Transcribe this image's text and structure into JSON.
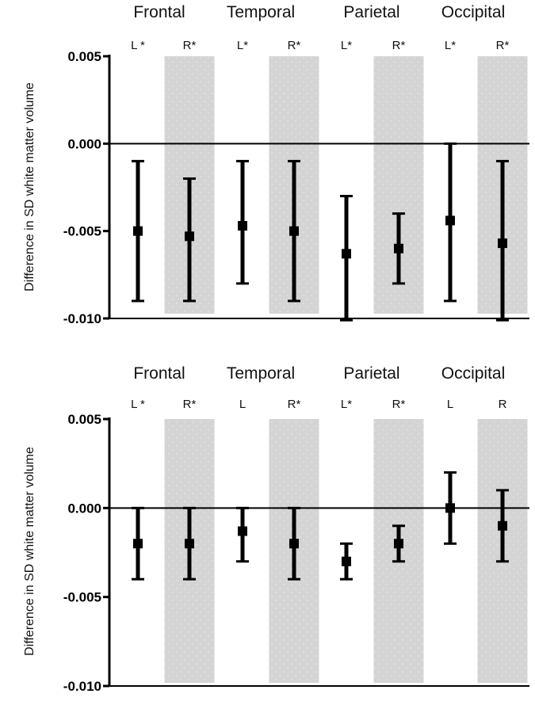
{
  "chart_data": [
    {
      "type": "errorbar",
      "ylabel": "Difference in SD white matter volume",
      "ylim": [
        -0.01,
        0.005
      ],
      "yticks": [
        "0.005",
        "0.000",
        "-0.005",
        "-0.010"
      ],
      "groups": [
        "Frontal",
        "Temporal",
        "Parietal",
        "Occipital"
      ],
      "categories": [
        "L *",
        "R*",
        "L*",
        "R*",
        "L*",
        "R*",
        "L*",
        "R*"
      ],
      "shaded": [
        false,
        true,
        false,
        true,
        false,
        true,
        false,
        true
      ],
      "values": [
        -0.005,
        -0.0053,
        -0.0047,
        -0.005,
        -0.0063,
        -0.006,
        -0.0044,
        -0.0057
      ],
      "lower": [
        -0.009,
        -0.009,
        -0.008,
        -0.009,
        -0.0101,
        -0.008,
        -0.009,
        -0.0101
      ],
      "upper": [
        -0.001,
        -0.002,
        -0.001,
        -0.001,
        -0.003,
        -0.004,
        0.0,
        -0.001
      ]
    },
    {
      "type": "errorbar",
      "ylabel": "Difference in SD white matter volume",
      "ylim": [
        -0.01,
        0.005
      ],
      "yticks": [
        "0.005",
        "0.000",
        "-0.005",
        "-0.010"
      ],
      "groups": [
        "Frontal",
        "Temporal",
        "Parietal",
        "Occipital"
      ],
      "categories": [
        "L *",
        "R*",
        "L",
        "R*",
        "L*",
        "R*",
        "L",
        "R"
      ],
      "shaded": [
        false,
        true,
        false,
        true,
        false,
        true,
        false,
        true
      ],
      "values": [
        -0.002,
        -0.002,
        -0.0013,
        -0.002,
        -0.003,
        -0.002,
        0.0,
        -0.001
      ],
      "lower": [
        -0.004,
        -0.004,
        -0.003,
        -0.004,
        -0.004,
        -0.003,
        -0.002,
        -0.003
      ],
      "upper": [
        0.0,
        0.0,
        0.0,
        0.0,
        -0.002,
        -0.001,
        0.002,
        0.001
      ]
    }
  ]
}
